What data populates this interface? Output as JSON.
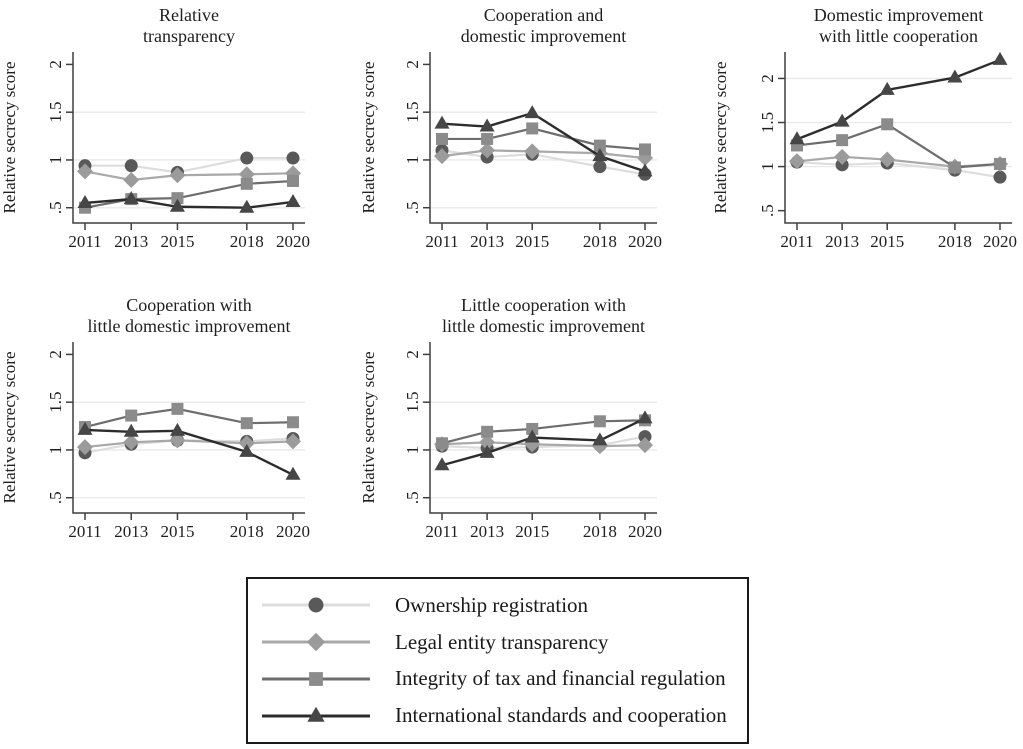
{
  "figure": {
    "ylabel": "Relative secrecy score",
    "x_tick_labels": [
      "2011",
      "2013",
      "2015",
      "2018",
      "2020"
    ],
    "ytick_values": [
      0.5,
      1,
      1.5,
      2
    ],
    "ytick_labels": [
      ".5",
      "1",
      "1.5",
      "2"
    ]
  },
  "style": {
    "axis_color": "#3f3f3f",
    "grid_color": "#e9e9e9",
    "text_color": "#1f1f1f",
    "legend_border_color": "#1a1a1a",
    "background_color": "#ffffff"
  },
  "legend": {
    "items": [
      {
        "label": "Ownership registration",
        "marker": "circle",
        "line_color": "#dddddd",
        "marker_color": "#595959"
      },
      {
        "label": "Legal entity transparency",
        "marker": "diamond",
        "line_color": "#a9a9a9",
        "marker_color": "#9b9b9b"
      },
      {
        "label": "Integrity of tax and financial regulation",
        "marker": "square",
        "line_color": "#6d6d6d",
        "marker_color": "#8b8b8b"
      },
      {
        "label": "International standards and cooperation",
        "marker": "triangle",
        "line_color": "#2c2c2c",
        "marker_color": "#464646"
      }
    ]
  },
  "chart_data": [
    {
      "type": "line",
      "title_lines": [
        "Relative",
        "transparency"
      ],
      "xlabel": "",
      "ylabel": "Relative secrecy score",
      "x": [
        2011,
        2013,
        2015,
        2018,
        2020
      ],
      "ylim": [
        0.34,
        2.13
      ],
      "gridlines": [
        0.5,
        1,
        1.5
      ],
      "series": [
        {
          "name": "Ownership registration",
          "values": [
            0.94,
            0.94,
            0.87,
            1.02,
            1.02
          ]
        },
        {
          "name": "Legal entity transparency",
          "values": [
            0.88,
            0.79,
            0.84,
            0.85,
            0.86
          ]
        },
        {
          "name": "Integrity of tax and financial regulation",
          "values": [
            0.5,
            0.59,
            0.6,
            0.75,
            0.78
          ]
        },
        {
          "name": "International standards and cooperation",
          "values": [
            0.55,
            0.59,
            0.51,
            0.5,
            0.56
          ]
        }
      ]
    },
    {
      "type": "line",
      "title_lines": [
        "Cooperation and",
        "domestic improvement"
      ],
      "xlabel": "",
      "ylabel": "Relative secrecy score",
      "x": [
        2011,
        2013,
        2015,
        2018,
        2020
      ],
      "ylim": [
        0.34,
        2.13
      ],
      "gridlines": [
        0.5,
        1,
        1.5
      ],
      "series": [
        {
          "name": "Ownership registration",
          "values": [
            1.1,
            1.03,
            1.06,
            0.93,
            0.85
          ]
        },
        {
          "name": "Legal entity transparency",
          "values": [
            1.04,
            1.1,
            1.09,
            1.07,
            1.02
          ]
        },
        {
          "name": "Integrity of tax and financial regulation",
          "values": [
            1.22,
            1.22,
            1.33,
            1.15,
            1.11
          ]
        },
        {
          "name": "International standards and cooperation",
          "values": [
            1.38,
            1.35,
            1.49,
            1.04,
            0.88
          ]
        }
      ]
    },
    {
      "type": "line",
      "title_lines": [
        "Domestic improvement",
        "with little cooperation"
      ],
      "xlabel": "",
      "ylabel": "Relative secrecy score",
      "x": [
        2011,
        2013,
        2015,
        2018,
        2020
      ],
      "ylim": [
        0.36,
        2.3
      ],
      "gridlines": [
        1,
        1.5,
        2
      ],
      "series": [
        {
          "name": "Ownership registration",
          "values": [
            1.05,
            1.02,
            1.04,
            0.96,
            0.88
          ]
        },
        {
          "name": "Legal entity transparency",
          "values": [
            1.06,
            1.11,
            1.08,
            1.0,
            1.03
          ]
        },
        {
          "name": "Integrity of tax and financial regulation",
          "values": [
            1.24,
            1.3,
            1.48,
            0.99,
            1.03
          ]
        },
        {
          "name": "International standards and cooperation",
          "values": [
            1.31,
            1.51,
            1.87,
            2.01,
            2.21
          ]
        }
      ]
    },
    {
      "type": "line",
      "title_lines": [
        "Cooperation with",
        "little domestic improvement"
      ],
      "xlabel": "",
      "ylabel": "Relative secrecy score",
      "x": [
        2011,
        2013,
        2015,
        2018,
        2020
      ],
      "ylim": [
        0.34,
        2.13
      ],
      "gridlines": [
        0.5,
        1,
        1.5
      ],
      "series": [
        {
          "name": "Ownership registration",
          "values": [
            0.97,
            1.06,
            1.1,
            1.09,
            1.12
          ]
        },
        {
          "name": "Legal entity transparency",
          "values": [
            1.03,
            1.08,
            1.1,
            1.07,
            1.09
          ]
        },
        {
          "name": "Integrity of tax and financial regulation",
          "values": [
            1.24,
            1.36,
            1.43,
            1.28,
            1.29
          ]
        },
        {
          "name": "International standards and cooperation",
          "values": [
            1.21,
            1.19,
            1.2,
            0.98,
            0.74
          ]
        }
      ]
    },
    {
      "type": "line",
      "title_lines": [
        "Little cooperation with",
        "little domestic improvement"
      ],
      "xlabel": "",
      "ylabel": "Relative secrecy score",
      "x": [
        2011,
        2013,
        2015,
        2018,
        2020
      ],
      "ylim": [
        0.34,
        2.13
      ],
      "gridlines": [
        0.5,
        1,
        1.5
      ],
      "series": [
        {
          "name": "Ownership registration",
          "values": [
            1.04,
            1.02,
            1.03,
            1.05,
            1.14
          ]
        },
        {
          "name": "Legal entity transparency",
          "values": [
            1.06,
            1.08,
            1.06,
            1.04,
            1.05
          ]
        },
        {
          "name": "Integrity of tax and financial regulation",
          "values": [
            1.07,
            1.19,
            1.22,
            1.3,
            1.31
          ]
        },
        {
          "name": "International standards and cooperation",
          "values": [
            0.84,
            0.97,
            1.13,
            1.1,
            1.33
          ]
        }
      ]
    }
  ]
}
